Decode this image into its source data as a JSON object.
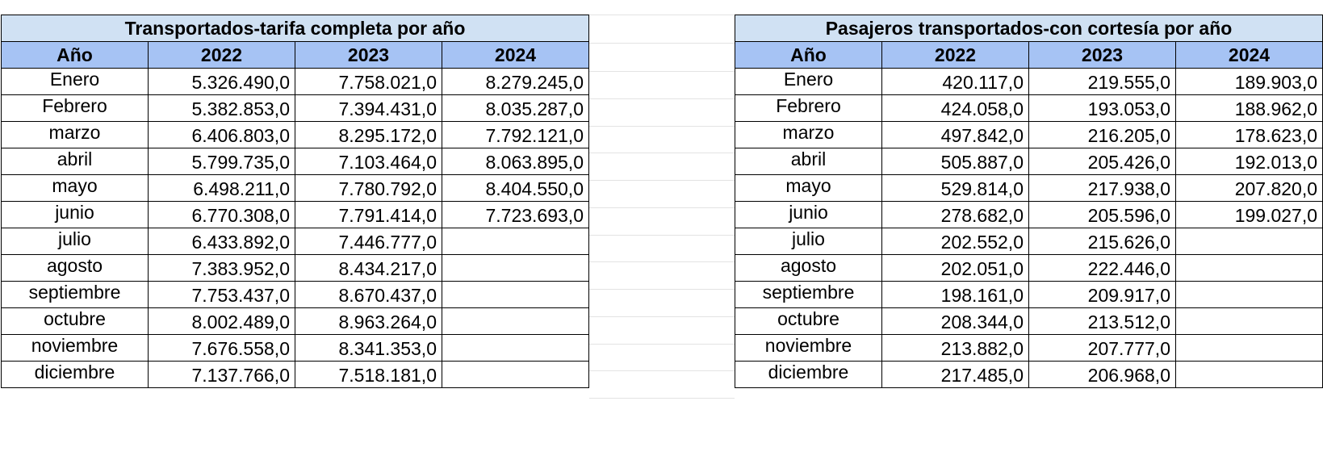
{
  "tables": [
    {
      "title": "Transportados-tarifa completa por año",
      "headers": [
        "Año",
        "2022",
        "2023",
        "2024"
      ],
      "rows": [
        [
          "Enero",
          "5.326.490,0",
          "7.758.021,0",
          "8.279.245,0"
        ],
        [
          "Febrero",
          "5.382.853,0",
          "7.394.431,0",
          "8.035.287,0"
        ],
        [
          "marzo",
          "6.406.803,0",
          "8.295.172,0",
          "7.792.121,0"
        ],
        [
          "abril",
          "5.799.735,0",
          "7.103.464,0",
          "8.063.895,0"
        ],
        [
          "mayo",
          "6.498.211,0",
          "7.780.792,0",
          "8.404.550,0"
        ],
        [
          "junio",
          "6.770.308,0",
          "7.791.414,0",
          "7.723.693,0"
        ],
        [
          "julio",
          "6.433.892,0",
          "7.446.777,0",
          ""
        ],
        [
          "agosto",
          "7.383.952,0",
          "8.434.217,0",
          ""
        ],
        [
          "septiembre",
          "7.753.437,0",
          "8.670.437,0",
          ""
        ],
        [
          "octubre",
          "8.002.489,0",
          "8.963.264,0",
          ""
        ],
        [
          "noviembre",
          "7.676.558,0",
          "8.341.353,0",
          ""
        ],
        [
          "diciembre",
          "7.137.766,0",
          "7.518.181,0",
          ""
        ]
      ]
    },
    {
      "title": "Pasajeros transportados-con cortesía por año",
      "headers": [
        "Año",
        "2022",
        "2023",
        "2024"
      ],
      "rows": [
        [
          "Enero",
          "420.117,0",
          "219.555,0",
          "189.903,0"
        ],
        [
          "Febrero",
          "424.058,0",
          "193.053,0",
          "188.962,0"
        ],
        [
          "marzo",
          "497.842,0",
          "216.205,0",
          "178.623,0"
        ],
        [
          "abril",
          "505.887,0",
          "205.426,0",
          "192.013,0"
        ],
        [
          "mayo",
          "529.814,0",
          "217.938,0",
          "207.820,0"
        ],
        [
          "junio",
          "278.682,0",
          "205.596,0",
          "199.027,0"
        ],
        [
          "julio",
          "202.552,0",
          "215.626,0",
          ""
        ],
        [
          "agosto",
          "202.051,0",
          "222.446,0",
          ""
        ],
        [
          "septiembre",
          "198.161,0",
          "209.917,0",
          ""
        ],
        [
          "octubre",
          "208.344,0",
          "213.512,0",
          ""
        ],
        [
          "noviembre",
          "213.882,0",
          "207.777,0",
          ""
        ],
        [
          "diciembre",
          "217.485,0",
          "206.968,0",
          ""
        ]
      ]
    }
  ],
  "colors": {
    "title_fill": "#d0e1f3",
    "header_fill": "#a6c3f4",
    "border": "#000000"
  }
}
